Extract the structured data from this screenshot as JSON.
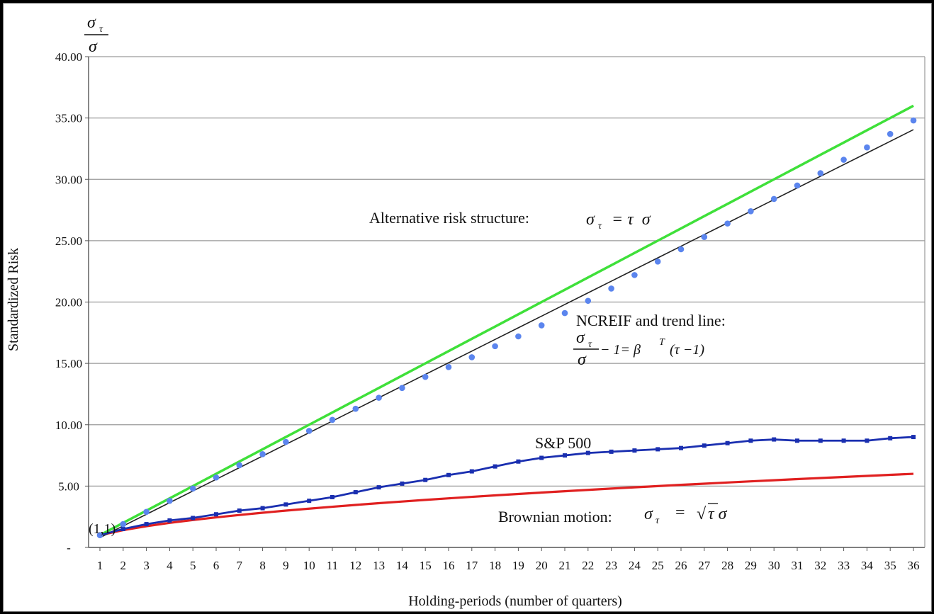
{
  "chart_data": {
    "type": "line",
    "y_axis_symbol": {
      "numerator": "σ",
      "numerator_sub": "τ",
      "denominator": "σ"
    },
    "xlabel": "Holding-periods (number of quarters)",
    "ylabel": "Standardized Risk",
    "x": [
      1,
      2,
      3,
      4,
      5,
      6,
      7,
      8,
      9,
      10,
      11,
      12,
      13,
      14,
      15,
      16,
      17,
      18,
      19,
      20,
      21,
      22,
      23,
      24,
      25,
      26,
      27,
      28,
      29,
      30,
      31,
      32,
      33,
      34,
      35,
      36
    ],
    "xlim": [
      1,
      36
    ],
    "ylim": [
      0,
      40
    ],
    "yticks": [
      {
        "value": 0,
        "label": "-"
      },
      {
        "value": 5,
        "label": "5.00"
      },
      {
        "value": 10,
        "label": "10.00"
      },
      {
        "value": 15,
        "label": "15.00"
      },
      {
        "value": 20,
        "label": "20.00"
      },
      {
        "value": 25,
        "label": "25.00"
      },
      {
        "value": 30,
        "label": "30.00"
      },
      {
        "value": 35,
        "label": "35.00"
      },
      {
        "value": 40,
        "label": "40.00"
      }
    ],
    "grid": true,
    "series": [
      {
        "key": "alt",
        "style": "line",
        "color": "#3fe03a",
        "values": [
          1,
          2,
          3,
          4,
          5,
          6,
          7,
          8,
          9,
          10,
          11,
          12,
          13,
          14,
          15,
          16,
          17,
          18,
          19,
          20,
          21,
          22,
          23,
          24,
          25,
          26,
          27,
          28,
          29,
          30,
          31,
          32,
          33,
          34,
          35,
          36
        ]
      },
      {
        "key": "trend",
        "style": "line",
        "color": "#222222",
        "values": [
          0.8,
          1.75,
          2.7,
          3.65,
          4.6,
          5.55,
          6.5,
          7.45,
          8.4,
          9.35,
          10.3,
          11.25,
          12.2,
          13.15,
          14.1,
          15.05,
          16.0,
          16.95,
          17.9,
          18.85,
          19.8,
          20.75,
          21.7,
          22.65,
          23.6,
          24.55,
          25.5,
          26.45,
          27.4,
          28.35,
          29.3,
          30.25,
          31.2,
          32.15,
          33.1,
          34.05
        ]
      },
      {
        "key": "ncreif",
        "style": "points",
        "color": "#5b85ee",
        "values": [
          1.0,
          1.9,
          2.9,
          3.8,
          4.8,
          5.7,
          6.7,
          7.6,
          8.6,
          9.5,
          10.4,
          11.3,
          12.2,
          13.0,
          13.9,
          14.7,
          15.5,
          16.4,
          17.2,
          18.1,
          19.1,
          20.1,
          21.1,
          22.2,
          23.3,
          24.3,
          25.3,
          26.4,
          27.4,
          28.4,
          29.5,
          30.5,
          31.6,
          32.6,
          33.7,
          34.8
        ]
      },
      {
        "key": "sp500",
        "style": "line-markers",
        "color": "#1a2fb0",
        "values": [
          1.0,
          1.5,
          1.9,
          2.2,
          2.4,
          2.7,
          3.0,
          3.2,
          3.5,
          3.8,
          4.1,
          4.5,
          4.9,
          5.2,
          5.5,
          5.9,
          6.2,
          6.6,
          7.0,
          7.3,
          7.5,
          7.7,
          7.8,
          7.9,
          8.0,
          8.1,
          8.3,
          8.5,
          8.7,
          8.8,
          8.7,
          8.7,
          8.7,
          8.7,
          8.9,
          9.0
        ]
      },
      {
        "key": "brownian",
        "style": "line",
        "color": "#e02020",
        "values": [
          1.0,
          1.414,
          1.732,
          2.0,
          2.236,
          2.449,
          2.646,
          2.828,
          3.0,
          3.162,
          3.317,
          3.464,
          3.606,
          3.742,
          3.873,
          4.0,
          4.123,
          4.243,
          4.359,
          4.472,
          4.583,
          4.69,
          4.796,
          4.899,
          5.0,
          5.099,
          5.196,
          5.292,
          5.385,
          5.477,
          5.568,
          5.657,
          5.745,
          5.831,
          5.916,
          6.0
        ]
      }
    ],
    "annotations": {
      "alt_text": "Alternative risk structure:",
      "alt_sigma": "σ",
      "alt_sub": "τ",
      "alt_rhs": "= τ  σ",
      "ncreif_text": "NCREIF and trend line:",
      "ncreif_num": "σ",
      "ncreif_sub": "τ",
      "ncreif_den": "σ",
      "ncreif_rhs": "− 1= β",
      "ncreif_sup": "T",
      "ncreif_tail": "(τ −1)",
      "sp500_text": "S&P 500",
      "brownian_text": "Brownian motion:",
      "brownian_sigma": "σ",
      "brownian_sub": "τ",
      "brownian_eq": "=",
      "brownian_root": "√",
      "brownian_tail": "τ σ",
      "origin_label": "(1,1)"
    }
  }
}
